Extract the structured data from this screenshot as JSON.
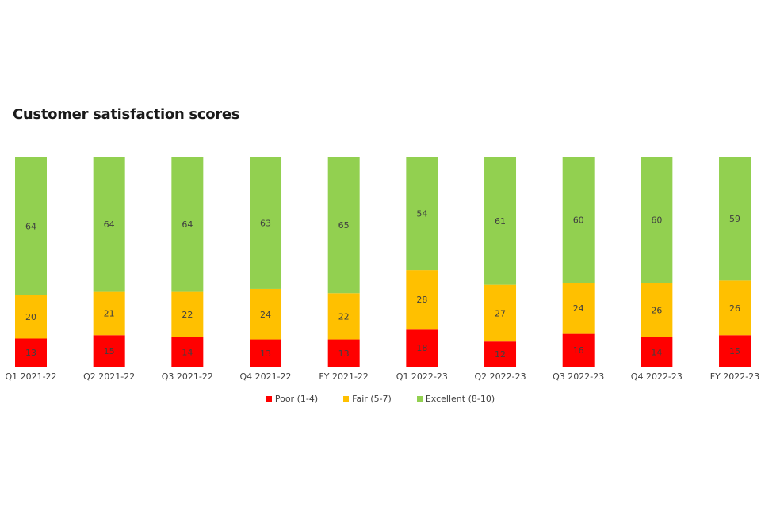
{
  "colors": {
    "poor": "#ff0000",
    "fair": "#ffc000",
    "excellent": "#92d050",
    "label": "#404040"
  },
  "chart_data": {
    "type": "bar",
    "stacked": true,
    "title": "Customer satisfaction scores",
    "categories": [
      "Q1 2021-22",
      "Q2 2021-22",
      "Q3 2021-22",
      "Q4 2021-22",
      "FY 2021-22",
      "Q1 2022-23",
      "Q2 2022-23",
      "Q3 2022-23",
      "Q4 2022-23",
      "FY 2022-23"
    ],
    "series": [
      {
        "name": "Poor (1-4)",
        "values": [
          13,
          15,
          14,
          13,
          13,
          18,
          12,
          16,
          14,
          15
        ]
      },
      {
        "name": "Fair (5-7)",
        "values": [
          20,
          21,
          22,
          24,
          22,
          28,
          27,
          24,
          26,
          26
        ]
      },
      {
        "name": "Excellent (8-10)",
        "values": [
          64,
          64,
          64,
          63,
          65,
          54,
          61,
          60,
          60,
          59
        ]
      }
    ],
    "legend_position": "bottom",
    "grid": false
  }
}
